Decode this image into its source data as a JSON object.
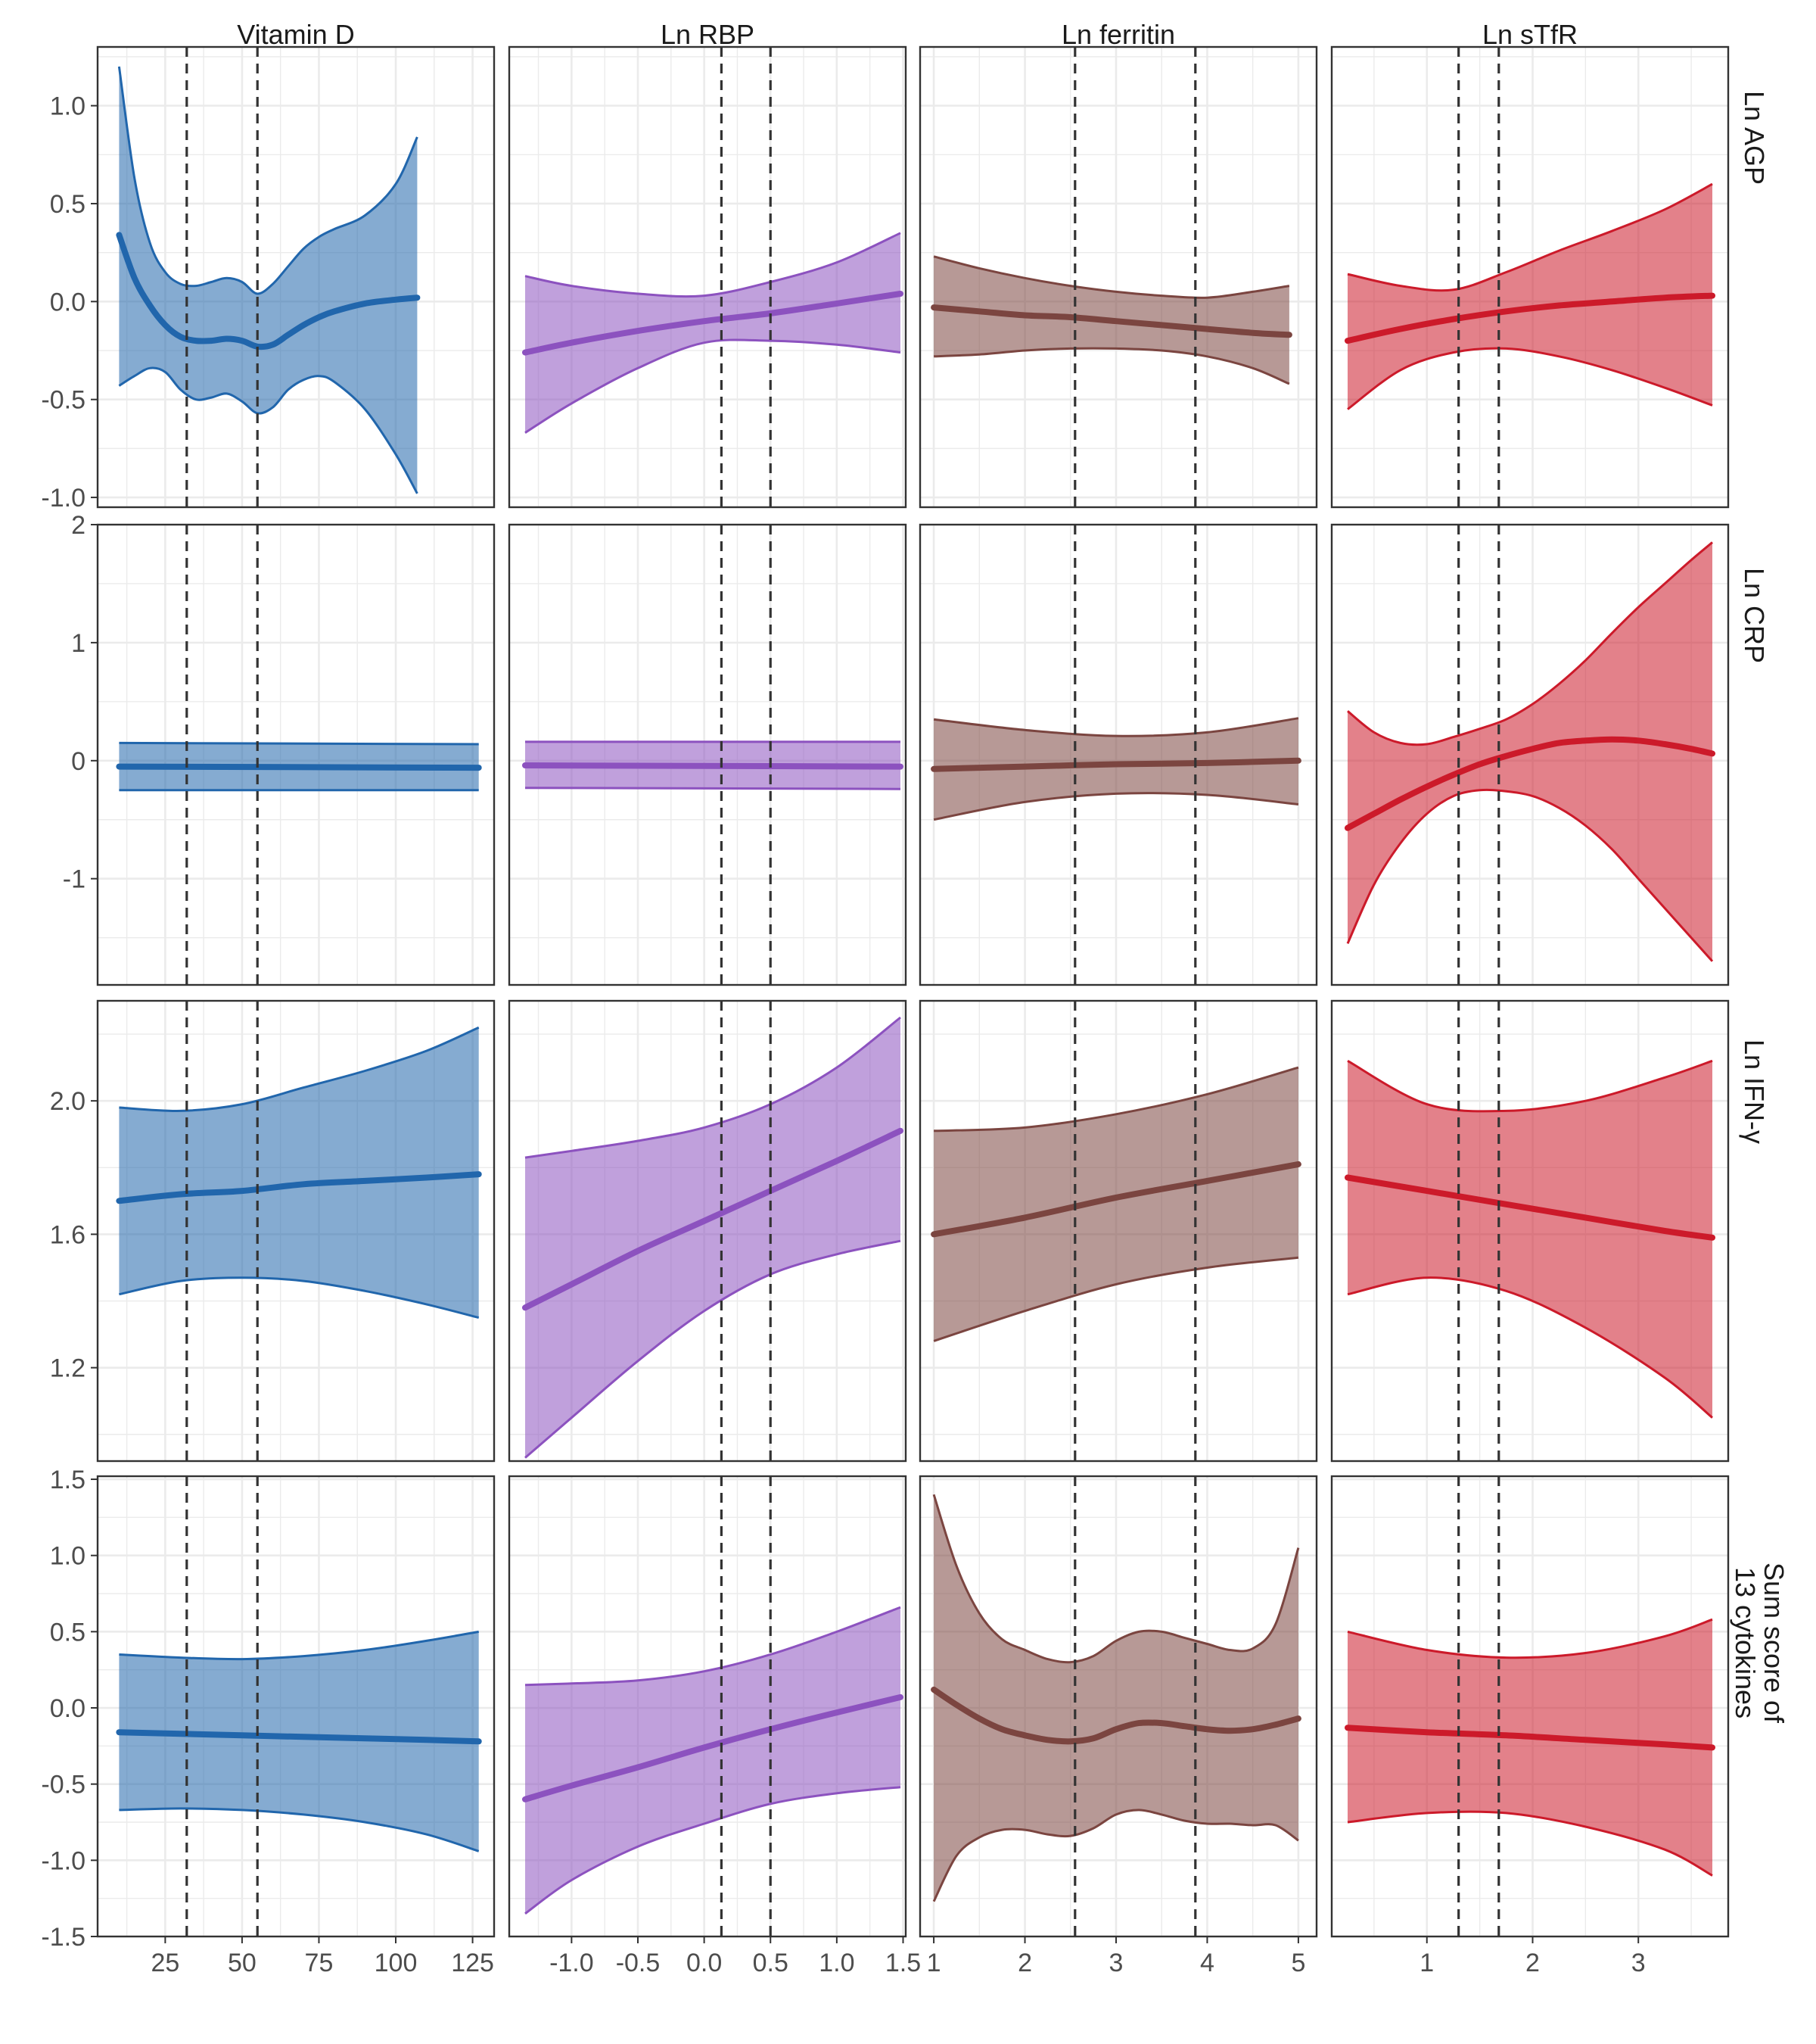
{
  "chart_data": {
    "type": "line",
    "layout": "facet-grid",
    "columns": [
      {
        "key": "vitd",
        "label": "Vitamin D",
        "color": "#2166ac",
        "xlim": [
          3,
          132
        ],
        "xticks": [
          25,
          50,
          75,
          100,
          125
        ],
        "xtick_labels": [
          "25",
          "50",
          "75",
          "100",
          "125"
        ],
        "vlines": [
          32,
          55
        ]
      },
      {
        "key": "rbp",
        "label": "Ln RBP",
        "color": "#8c52bf",
        "xlim": [
          -1.47,
          1.52
        ],
        "xticks": [
          -1.0,
          -0.5,
          0.0,
          0.5,
          1.0,
          1.5
        ],
        "xtick_labels": [
          "-1.0",
          "-0.5",
          "0.0",
          "0.5",
          "1.0",
          "1.5"
        ],
        "vlines": [
          0.13,
          0.5
        ]
      },
      {
        "key": "ferritin",
        "label": "Ln ferritin",
        "color": "#7b4540",
        "xlim": [
          0.85,
          5.2
        ],
        "xticks": [
          1,
          2,
          3,
          4,
          5
        ],
        "xtick_labels": [
          "1",
          "2",
          "3",
          "4",
          "5"
        ],
        "vlines": [
          2.55,
          3.87
        ]
      },
      {
        "key": "stfr",
        "label": "Ln sTfR",
        "color": "#cc1a2a",
        "xlim": [
          0.1,
          3.85
        ],
        "xticks": [
          1,
          2,
          3
        ],
        "xtick_labels": [
          "1",
          "2",
          "3"
        ],
        "vlines": [
          1.3,
          1.68
        ]
      }
    ],
    "rows": [
      {
        "key": "agp",
        "label": "Ln AGP",
        "ylim": [
          -1.05,
          1.3
        ],
        "yticks": [
          -1.0,
          -0.5,
          0.0,
          0.5,
          1.0
        ],
        "ytick_labels": [
          "-1.0",
          "-0.5",
          "0.0",
          "0.5",
          "1.0"
        ]
      },
      {
        "key": "crp",
        "label": "Ln CRP",
        "ylim": [
          -1.9,
          2.0
        ],
        "yticks": [
          -1,
          0,
          1,
          2
        ],
        "ytick_labels": [
          "-1",
          "0",
          "1",
          "2"
        ]
      },
      {
        "key": "ifn",
        "label": "Ln IFN-γ",
        "ylim": [
          0.92,
          2.3
        ],
        "yticks": [
          1.2,
          1.6,
          2.0
        ],
        "ytick_labels": [
          "1.2",
          "1.6",
          "2.0"
        ]
      },
      {
        "key": "sum",
        "label": "Sum score of 13 cytokines",
        "ylim": [
          -1.5,
          1.52
        ],
        "yticks": [
          -1.5,
          -1.0,
          -0.5,
          0.0,
          0.5,
          1.0,
          1.5
        ],
        "ytick_labels": [
          "-1.5",
          "-1.0",
          "-0.5",
          "0.0",
          "0.5",
          "1.0",
          "1.5"
        ]
      }
    ],
    "grid": true,
    "panels": {
      "agp": {
        "vitd": {
          "x": [
            10,
            15,
            20,
            25,
            30,
            35,
            40,
            45,
            50,
            55,
            60,
            65,
            70,
            75,
            80,
            90,
            100,
            107
          ],
          "fit": [
            0.34,
            0.12,
            -0.02,
            -0.12,
            -0.18,
            -0.2,
            -0.2,
            -0.19,
            -0.2,
            -0.23,
            -0.22,
            -0.17,
            -0.12,
            -0.08,
            -0.05,
            -0.01,
            0.01,
            0.02
          ],
          "lo": [
            -0.43,
            -0.38,
            -0.34,
            -0.36,
            -0.45,
            -0.5,
            -0.49,
            -0.47,
            -0.51,
            -0.57,
            -0.54,
            -0.45,
            -0.4,
            -0.38,
            -0.41,
            -0.55,
            -0.78,
            -0.98
          ],
          "hi": [
            1.2,
            0.63,
            0.3,
            0.15,
            0.09,
            0.08,
            0.1,
            0.12,
            0.1,
            0.04,
            0.09,
            0.18,
            0.27,
            0.33,
            0.37,
            0.44,
            0.6,
            0.84
          ]
        },
        "rbp": {
          "x": [
            -1.35,
            -1.0,
            -0.5,
            0.0,
            0.5,
            1.0,
            1.48
          ],
          "fit": [
            -0.26,
            -0.21,
            -0.15,
            -0.1,
            -0.06,
            -0.01,
            0.04
          ],
          "lo": [
            -0.67,
            -0.52,
            -0.34,
            -0.21,
            -0.2,
            -0.22,
            -0.26
          ],
          "hi": [
            0.13,
            0.08,
            0.04,
            0.03,
            0.1,
            0.2,
            0.35
          ]
        },
        "ferritin": {
          "x": [
            1.0,
            1.5,
            2.0,
            2.5,
            3.0,
            3.5,
            4.0,
            4.5,
            4.9
          ],
          "fit": [
            -0.03,
            -0.05,
            -0.07,
            -0.08,
            -0.1,
            -0.12,
            -0.14,
            -0.16,
            -0.17
          ],
          "lo": [
            -0.28,
            -0.27,
            -0.25,
            -0.24,
            -0.24,
            -0.25,
            -0.28,
            -0.34,
            -0.42
          ],
          "hi": [
            0.23,
            0.17,
            0.12,
            0.08,
            0.05,
            0.03,
            0.02,
            0.05,
            0.08
          ]
        },
        "stfr": {
          "x": [
            0.25,
            0.75,
            1.25,
            1.75,
            2.25,
            2.75,
            3.25,
            3.7
          ],
          "fit": [
            -0.2,
            -0.14,
            -0.09,
            -0.05,
            -0.02,
            0.0,
            0.02,
            0.03
          ],
          "lo": [
            -0.55,
            -0.35,
            -0.26,
            -0.24,
            -0.28,
            -0.35,
            -0.44,
            -0.53
          ],
          "hi": [
            0.14,
            0.08,
            0.06,
            0.15,
            0.26,
            0.36,
            0.47,
            0.6
          ]
        }
      },
      "crp": {
        "vitd": {
          "x": [
            10,
            127
          ],
          "fit": [
            -0.05,
            -0.06
          ],
          "lo": [
            -0.25,
            -0.25
          ],
          "hi": [
            0.15,
            0.14
          ]
        },
        "rbp": {
          "x": [
            -1.35,
            1.48
          ],
          "fit": [
            -0.04,
            -0.05
          ],
          "lo": [
            -0.23,
            -0.24
          ],
          "hi": [
            0.16,
            0.16
          ]
        },
        "ferritin": {
          "x": [
            1.0,
            2.0,
            3.0,
            4.0,
            5.0
          ],
          "fit": [
            -0.07,
            -0.05,
            -0.03,
            -0.02,
            0.0
          ],
          "lo": [
            -0.5,
            -0.35,
            -0.28,
            -0.29,
            -0.37
          ],
          "hi": [
            0.35,
            0.26,
            0.21,
            0.24,
            0.36
          ]
        },
        "stfr": {
          "x": [
            0.25,
            0.5,
            0.75,
            1.0,
            1.25,
            1.5,
            1.75,
            2.0,
            2.25,
            2.5,
            2.75,
            3.0,
            3.25,
            3.5,
            3.7
          ],
          "fit": [
            -0.57,
            -0.45,
            -0.33,
            -0.22,
            -0.12,
            -0.03,
            0.04,
            0.1,
            0.15,
            0.17,
            0.18,
            0.17,
            0.14,
            0.1,
            0.06
          ],
          "lo": [
            -1.55,
            -1.05,
            -0.7,
            -0.45,
            -0.3,
            -0.25,
            -0.26,
            -0.3,
            -0.4,
            -0.55,
            -0.75,
            -1.0,
            -1.25,
            -1.5,
            -1.7
          ],
          "hi": [
            0.42,
            0.24,
            0.15,
            0.14,
            0.2,
            0.27,
            0.35,
            0.48,
            0.65,
            0.85,
            1.08,
            1.3,
            1.5,
            1.7,
            1.85
          ]
        }
      },
      "ifn": {
        "vitd": {
          "x": [
            10,
            30,
            50,
            70,
            90,
            110,
            127
          ],
          "fit": [
            1.7,
            1.72,
            1.73,
            1.75,
            1.76,
            1.77,
            1.78
          ],
          "lo": [
            1.42,
            1.46,
            1.47,
            1.46,
            1.43,
            1.39,
            1.35
          ],
          "hi": [
            1.98,
            1.97,
            1.99,
            2.04,
            2.09,
            2.15,
            2.22
          ]
        },
        "rbp": {
          "x": [
            -1.35,
            -1.0,
            -0.5,
            0.0,
            0.5,
            1.0,
            1.48
          ],
          "fit": [
            1.38,
            1.45,
            1.55,
            1.64,
            1.73,
            1.82,
            1.91
          ],
          "lo": [
            0.93,
            1.05,
            1.22,
            1.37,
            1.48,
            1.54,
            1.58
          ],
          "hi": [
            1.83,
            1.85,
            1.88,
            1.92,
            1.99,
            2.1,
            2.25
          ]
        },
        "ferritin": {
          "x": [
            1.0,
            2.0,
            3.0,
            4.0,
            5.0
          ],
          "fit": [
            1.6,
            1.65,
            1.71,
            1.76,
            1.81
          ],
          "lo": [
            1.28,
            1.37,
            1.45,
            1.5,
            1.53
          ],
          "hi": [
            1.91,
            1.92,
            1.96,
            2.02,
            2.1
          ]
        },
        "stfr": {
          "x": [
            0.25,
            1.0,
            1.75,
            2.5,
            3.25,
            3.7
          ],
          "fit": [
            1.77,
            1.73,
            1.69,
            1.65,
            1.61,
            1.59
          ],
          "lo": [
            1.42,
            1.47,
            1.43,
            1.32,
            1.17,
            1.05
          ],
          "hi": [
            2.12,
            1.99,
            1.97,
            2.0,
            2.07,
            2.12
          ]
        }
      },
      "sum": {
        "vitd": {
          "x": [
            10,
            30,
            50,
            70,
            90,
            110,
            127
          ],
          "fit": [
            -0.16,
            -0.17,
            -0.18,
            -0.19,
            -0.2,
            -0.21,
            -0.22
          ],
          "lo": [
            -0.67,
            -0.66,
            -0.67,
            -0.7,
            -0.75,
            -0.83,
            -0.94
          ],
          "hi": [
            0.35,
            0.33,
            0.32,
            0.34,
            0.38,
            0.44,
            0.5
          ]
        },
        "rbp": {
          "x": [
            -1.35,
            -1.0,
            -0.5,
            0.0,
            0.5,
            1.0,
            1.48
          ],
          "fit": [
            -0.6,
            -0.51,
            -0.39,
            -0.26,
            -0.14,
            -0.03,
            0.07
          ],
          "lo": [
            -1.35,
            -1.13,
            -0.91,
            -0.76,
            -0.63,
            -0.56,
            -0.52
          ],
          "hi": [
            0.15,
            0.16,
            0.18,
            0.24,
            0.35,
            0.5,
            0.66
          ]
        },
        "ferritin": {
          "x": [
            1.0,
            1.25,
            1.5,
            1.75,
            2.0,
            2.25,
            2.5,
            2.75,
            3.0,
            3.25,
            3.5,
            3.75,
            4.0,
            4.25,
            4.5,
            4.75,
            5.0
          ],
          "fit": [
            0.12,
            0.02,
            -0.07,
            -0.14,
            -0.18,
            -0.21,
            -0.22,
            -0.2,
            -0.14,
            -0.1,
            -0.1,
            -0.12,
            -0.14,
            -0.15,
            -0.14,
            -0.11,
            -0.07
          ],
          "lo": [
            -1.27,
            -0.97,
            -0.85,
            -0.8,
            -0.8,
            -0.83,
            -0.84,
            -0.79,
            -0.7,
            -0.67,
            -0.7,
            -0.74,
            -0.76,
            -0.76,
            -0.77,
            -0.77,
            -0.87
          ],
          "hi": [
            1.4,
            0.93,
            0.62,
            0.45,
            0.38,
            0.32,
            0.3,
            0.34,
            0.44,
            0.5,
            0.5,
            0.46,
            0.42,
            0.38,
            0.39,
            0.55,
            1.05
          ]
        },
        "stfr": {
          "x": [
            0.25,
            1.0,
            1.75,
            2.5,
            3.25,
            3.7
          ],
          "fit": [
            -0.13,
            -0.16,
            -0.18,
            -0.21,
            -0.24,
            -0.26
          ],
          "lo": [
            -0.75,
            -0.69,
            -0.69,
            -0.78,
            -0.93,
            -1.1
          ],
          "hi": [
            0.5,
            0.38,
            0.33,
            0.36,
            0.47,
            0.58
          ]
        }
      }
    }
  }
}
